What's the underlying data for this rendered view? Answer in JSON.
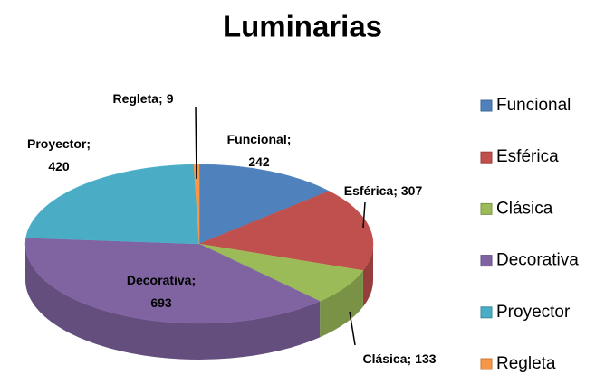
{
  "chart_data": {
    "type": "pie",
    "title": "Luminarias",
    "categories": [
      "Funcional",
      "Esférica",
      "Clásica",
      "Decorativa",
      "Proyector",
      "Regleta"
    ],
    "values": [
      242,
      307,
      133,
      693,
      420,
      9
    ],
    "colors": [
      "#4f81bd",
      "#c0504d",
      "#9bbb59",
      "#8064a2",
      "#4bacc6",
      "#f79646"
    ],
    "label_separator": ";",
    "legend": "right"
  }
}
